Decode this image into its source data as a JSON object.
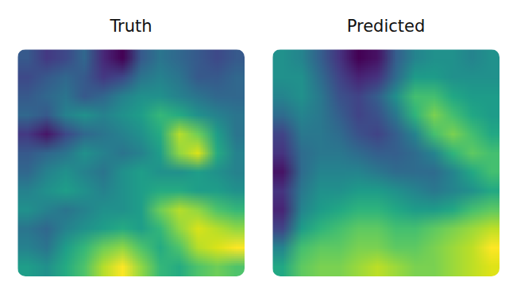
{
  "chart_data": [
    {
      "type": "heatmap",
      "title": "Truth",
      "color": "viridis",
      "tick_labels": false,
      "cells": [
        [
          0.55,
          0.5,
          0.6,
          0.7,
          0.85,
          0.95,
          0.8,
          0.65,
          0.6,
          0.7,
          0.75,
          0.7
        ],
        [
          0.45,
          0.4,
          0.55,
          0.65,
          0.75,
          0.8,
          0.7,
          0.6,
          0.7,
          0.85,
          0.9,
          0.95
        ],
        [
          0.4,
          0.35,
          0.45,
          0.5,
          0.55,
          0.6,
          0.55,
          0.65,
          0.8,
          0.9,
          0.85,
          0.8
        ],
        [
          0.5,
          0.45,
          0.4,
          0.45,
          0.5,
          0.5,
          0.55,
          0.75,
          0.85,
          0.8,
          0.7,
          0.65
        ],
        [
          0.45,
          0.5,
          0.55,
          0.5,
          0.45,
          0.5,
          0.55,
          0.6,
          0.6,
          0.55,
          0.55,
          0.5
        ],
        [
          0.35,
          0.45,
          0.5,
          0.45,
          0.4,
          0.5,
          0.55,
          0.5,
          0.5,
          0.55,
          0.5,
          0.45
        ],
        [
          0.3,
          0.35,
          0.4,
          0.5,
          0.45,
          0.4,
          0.45,
          0.55,
          0.8,
          0.9,
          0.6,
          0.45
        ],
        [
          0.2,
          0.1,
          0.25,
          0.35,
          0.4,
          0.45,
          0.5,
          0.6,
          0.85,
          0.75,
          0.55,
          0.4
        ],
        [
          0.35,
          0.3,
          0.45,
          0.5,
          0.45,
          0.5,
          0.55,
          0.65,
          0.6,
          0.5,
          0.45,
          0.4
        ],
        [
          0.3,
          0.35,
          0.4,
          0.3,
          0.35,
          0.45,
          0.5,
          0.5,
          0.45,
          0.4,
          0.35,
          0.35
        ],
        [
          0.25,
          0.3,
          0.35,
          0.3,
          0.2,
          0.25,
          0.4,
          0.45,
          0.4,
          0.3,
          0.3,
          0.35
        ],
        [
          0.3,
          0.2,
          0.25,
          0.35,
          0.15,
          0.05,
          0.3,
          0.4,
          0.35,
          0.3,
          0.25,
          0.3
        ]
      ]
    },
    {
      "type": "heatmap",
      "title": "Predicted",
      "color": "viridis",
      "tick_labels": false,
      "cells": [
        [
          0.6,
          0.75,
          0.8,
          0.8,
          0.85,
          0.9,
          0.85,
          0.8,
          0.8,
          0.85,
          0.9,
          0.95
        ],
        [
          0.45,
          0.7,
          0.75,
          0.75,
          0.8,
          0.8,
          0.75,
          0.75,
          0.8,
          0.85,
          0.9,
          1.0
        ],
        [
          0.2,
          0.55,
          0.65,
          0.7,
          0.75,
          0.75,
          0.7,
          0.7,
          0.75,
          0.8,
          0.85,
          0.9
        ],
        [
          0.1,
          0.45,
          0.55,
          0.6,
          0.65,
          0.65,
          0.6,
          0.55,
          0.55,
          0.6,
          0.7,
          0.75
        ],
        [
          0.15,
          0.4,
          0.5,
          0.5,
          0.55,
          0.55,
          0.5,
          0.45,
          0.4,
          0.45,
          0.5,
          0.6
        ],
        [
          0.05,
          0.35,
          0.45,
          0.45,
          0.45,
          0.4,
          0.35,
          0.35,
          0.35,
          0.45,
          0.6,
          0.7
        ],
        [
          0.15,
          0.35,
          0.4,
          0.4,
          0.35,
          0.3,
          0.3,
          0.35,
          0.45,
          0.65,
          0.75,
          0.7
        ],
        [
          0.2,
          0.4,
          0.4,
          0.35,
          0.25,
          0.2,
          0.3,
          0.45,
          0.7,
          0.8,
          0.7,
          0.6
        ],
        [
          0.35,
          0.45,
          0.4,
          0.3,
          0.2,
          0.25,
          0.4,
          0.65,
          0.8,
          0.7,
          0.6,
          0.55
        ],
        [
          0.45,
          0.5,
          0.4,
          0.25,
          0.2,
          0.3,
          0.5,
          0.7,
          0.7,
          0.6,
          0.55,
          0.55
        ],
        [
          0.5,
          0.5,
          0.35,
          0.2,
          0.1,
          0.15,
          0.35,
          0.55,
          0.55,
          0.5,
          0.5,
          0.5
        ],
        [
          0.5,
          0.45,
          0.3,
          0.15,
          0.0,
          0.05,
          0.3,
          0.45,
          0.5,
          0.5,
          0.45,
          0.5
        ]
      ]
    }
  ]
}
